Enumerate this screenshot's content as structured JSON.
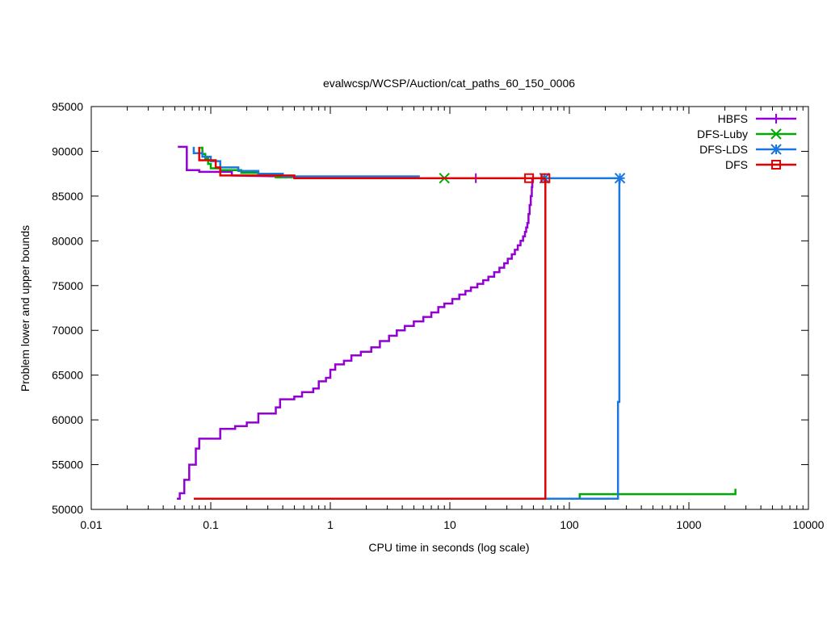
{
  "chart_data": {
    "type": "line",
    "title": "evalwcsp/WCSP/Auction/cat_paths_60_150_0006",
    "xlabel": "CPU time in seconds (log scale)",
    "ylabel": "Problem lower and upper bounds",
    "xscale": "log",
    "xlim": [
      0.01,
      10000
    ],
    "ylim": [
      50000,
      95000
    ],
    "x_ticks": [
      0.01,
      0.1,
      1,
      10,
      100,
      1000,
      10000
    ],
    "x_tick_labels": [
      "0.01",
      "0.1",
      "1",
      "10",
      "100",
      "1000",
      "10000"
    ],
    "y_ticks": [
      50000,
      55000,
      60000,
      65000,
      70000,
      75000,
      80000,
      85000,
      90000,
      95000
    ],
    "y_tick_labels": [
      "50000",
      "55000",
      "60000",
      "65000",
      "70000",
      "75000",
      "80000",
      "85000",
      "90000",
      "95000"
    ],
    "legend_position": "top-right",
    "series": [
      {
        "name": "HBFS",
        "color": "#9400d3",
        "marker": "plus",
        "upper": [
          [
            0.053,
            90500
          ],
          [
            0.063,
            90500
          ],
          [
            0.063,
            87900
          ],
          [
            0.08,
            87900
          ],
          [
            0.08,
            87700
          ],
          [
            0.15,
            87700
          ],
          [
            0.15,
            87300
          ],
          [
            0.4,
            87200
          ],
          [
            1.0,
            87100
          ],
          [
            5.0,
            87000
          ],
          [
            50,
            87000
          ],
          [
            62,
            87000
          ]
        ],
        "lower": [
          [
            0.052,
            51200
          ],
          [
            0.055,
            51200
          ],
          [
            0.055,
            51800
          ],
          [
            0.06,
            51800
          ],
          [
            0.06,
            53300
          ],
          [
            0.066,
            53300
          ],
          [
            0.066,
            55000
          ],
          [
            0.075,
            55000
          ],
          [
            0.075,
            56800
          ],
          [
            0.08,
            56800
          ],
          [
            0.08,
            57900
          ],
          [
            0.12,
            57900
          ],
          [
            0.12,
            59000
          ],
          [
            0.16,
            59000
          ],
          [
            0.16,
            59300
          ],
          [
            0.2,
            59300
          ],
          [
            0.2,
            59700
          ],
          [
            0.25,
            59700
          ],
          [
            0.25,
            60700
          ],
          [
            0.35,
            60700
          ],
          [
            0.35,
            61400
          ],
          [
            0.38,
            61400
          ],
          [
            0.38,
            62300
          ],
          [
            0.5,
            62300
          ],
          [
            0.5,
            62600
          ],
          [
            0.58,
            62600
          ],
          [
            0.58,
            63100
          ],
          [
            0.72,
            63100
          ],
          [
            0.72,
            63500
          ],
          [
            0.8,
            63500
          ],
          [
            0.8,
            64300
          ],
          [
            0.92,
            64300
          ],
          [
            0.92,
            64700
          ],
          [
            1.0,
            64700
          ],
          [
            1.0,
            65600
          ],
          [
            1.1,
            65600
          ],
          [
            1.1,
            66200
          ],
          [
            1.3,
            66200
          ],
          [
            1.3,
            66600
          ],
          [
            1.5,
            66600
          ],
          [
            1.5,
            67200
          ],
          [
            1.8,
            67200
          ],
          [
            1.8,
            67600
          ],
          [
            2.2,
            67600
          ],
          [
            2.2,
            68100
          ],
          [
            2.6,
            68100
          ],
          [
            2.6,
            68800
          ],
          [
            3.1,
            68800
          ],
          [
            3.1,
            69400
          ],
          [
            3.6,
            69400
          ],
          [
            3.6,
            70000
          ],
          [
            4.2,
            70000
          ],
          [
            4.2,
            70500
          ],
          [
            5.0,
            70500
          ],
          [
            5.0,
            71000
          ],
          [
            6.0,
            71000
          ],
          [
            6.0,
            71500
          ],
          [
            7.0,
            71500
          ],
          [
            7.0,
            72000
          ],
          [
            8.0,
            72000
          ],
          [
            8.0,
            72600
          ],
          [
            9.0,
            72600
          ],
          [
            9.0,
            73000
          ],
          [
            10.5,
            73000
          ],
          [
            10.5,
            73500
          ],
          [
            12,
            73500
          ],
          [
            12,
            74000
          ],
          [
            13.5,
            74000
          ],
          [
            13.5,
            74400
          ],
          [
            15,
            74400
          ],
          [
            15,
            74800
          ],
          [
            17,
            74800
          ],
          [
            17,
            75200
          ],
          [
            19,
            75200
          ],
          [
            19,
            75600
          ],
          [
            21,
            75600
          ],
          [
            21,
            76000
          ],
          [
            23.5,
            76000
          ],
          [
            23.5,
            76500
          ],
          [
            26,
            76500
          ],
          [
            26,
            77000
          ],
          [
            28.5,
            77000
          ],
          [
            28.5,
            77500
          ],
          [
            30.5,
            77500
          ],
          [
            30.5,
            78000
          ],
          [
            33,
            78000
          ],
          [
            33,
            78500
          ],
          [
            35,
            78500
          ],
          [
            35,
            79000
          ],
          [
            37,
            79000
          ],
          [
            37,
            79500
          ],
          [
            39,
            79500
          ],
          [
            39,
            80000
          ],
          [
            41,
            80000
          ],
          [
            41,
            80500
          ],
          [
            42.5,
            80500
          ],
          [
            42.5,
            81000
          ],
          [
            43.5,
            81000
          ],
          [
            43.5,
            81500
          ],
          [
            44.5,
            81500
          ],
          [
            44.5,
            82000
          ],
          [
            45.5,
            82000
          ],
          [
            45.5,
            83000
          ],
          [
            46.5,
            83000
          ],
          [
            46.5,
            84000
          ],
          [
            47.5,
            84000
          ],
          [
            47.5,
            85000
          ],
          [
            48.5,
            85000
          ],
          [
            48.5,
            86000
          ],
          [
            49,
            86000
          ],
          [
            49,
            87000
          ]
        ],
        "markers": [
          [
            16.5,
            87000
          ],
          [
            62,
            87000
          ]
        ]
      },
      {
        "name": "DFS-Luby",
        "color": "#00aa00",
        "marker": "x",
        "upper": [
          [
            0.082,
            90400
          ],
          [
            0.085,
            90400
          ],
          [
            0.085,
            89700
          ],
          [
            0.09,
            89700
          ],
          [
            0.09,
            89200
          ],
          [
            0.095,
            89200
          ],
          [
            0.095,
            88600
          ],
          [
            0.1,
            88600
          ],
          [
            0.1,
            88100
          ],
          [
            0.12,
            88100
          ],
          [
            0.12,
            87900
          ],
          [
            0.18,
            87900
          ],
          [
            0.18,
            87600
          ],
          [
            0.25,
            87600
          ],
          [
            0.25,
            87300
          ],
          [
            0.35,
            87300
          ],
          [
            0.35,
            87100
          ],
          [
            0.8,
            87100
          ],
          [
            0.8,
            87000
          ],
          [
            9,
            87000
          ]
        ],
        "lower": [
          [
            122,
            51200
          ],
          [
            122,
            51700
          ],
          [
            2450,
            51700
          ],
          [
            2450,
            52300
          ]
        ],
        "markers": [
          [
            9,
            87000
          ]
        ]
      },
      {
        "name": "DFS-LDS",
        "color": "#1a77e0",
        "marker": "star",
        "upper": [
          [
            0.072,
            90500
          ],
          [
            0.072,
            89800
          ],
          [
            0.085,
            89800
          ],
          [
            0.085,
            89400
          ],
          [
            0.1,
            89400
          ],
          [
            0.1,
            88900
          ],
          [
            0.12,
            88900
          ],
          [
            0.12,
            88200
          ],
          [
            0.17,
            88200
          ],
          [
            0.17,
            87800
          ],
          [
            0.25,
            87800
          ],
          [
            0.25,
            87500
          ],
          [
            0.4,
            87500
          ],
          [
            0.4,
            87200
          ],
          [
            5.5,
            87200
          ],
          [
            5.5,
            87000
          ],
          [
            265,
            87000
          ]
        ],
        "lower": [
          [
            56,
            51200
          ],
          [
            255,
            51200
          ],
          [
            255,
            62000
          ],
          [
            262,
            62000
          ],
          [
            262,
            87000
          ]
        ],
        "markers": [
          [
            62,
            87000
          ],
          [
            265,
            87000
          ]
        ]
      },
      {
        "name": "DFS",
        "color": "#e50000",
        "marker": "square",
        "upper": [
          [
            0.08,
            90500
          ],
          [
            0.08,
            89000
          ],
          [
            0.11,
            89000
          ],
          [
            0.11,
            88200
          ],
          [
            0.12,
            88200
          ],
          [
            0.12,
            87300
          ],
          [
            0.5,
            87300
          ],
          [
            0.5,
            87000
          ],
          [
            63,
            87000
          ]
        ],
        "lower": [
          [
            0.072,
            51200
          ],
          [
            63,
            51200
          ],
          [
            63,
            87000
          ]
        ],
        "markers": [
          [
            46,
            87000
          ],
          [
            63,
            87000
          ]
        ]
      }
    ]
  }
}
